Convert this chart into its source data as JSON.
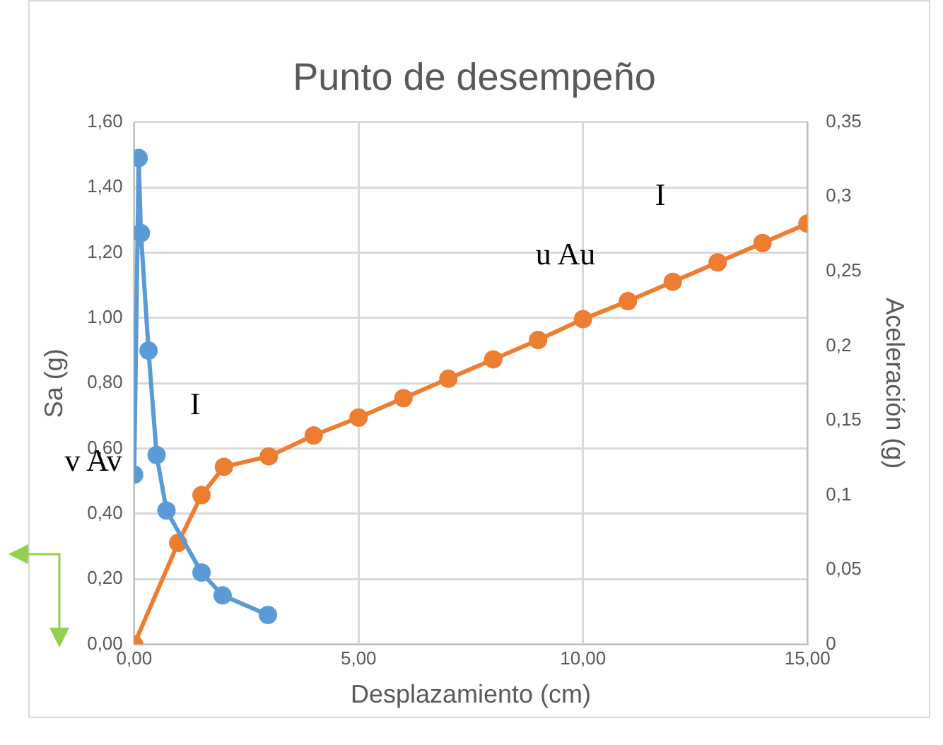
{
  "chart_data": {
    "type": "line",
    "title": "Punto de desempeño",
    "xlabel": "Desplazamiento (cm)",
    "ylabel": "Sa (g)",
    "y2label": "Aceleración (g)",
    "series": [
      {
        "color": "#5b9bd5",
        "x": [
          0,
          0.1,
          0.15,
          0.32,
          0.5,
          0.72,
          1.5,
          1.97,
          2.98
        ],
        "values": [
          0.52,
          1.49,
          1.26,
          0.9,
          0.58,
          0.41,
          0.22,
          0.15,
          0.09
        ]
      },
      {
        "color": "#ed7d31",
        "axis": "y2",
        "x": [
          0,
          0.98,
          1.5,
          2,
          3,
          4,
          5,
          6,
          7,
          8,
          9,
          10,
          11,
          12,
          13,
          14,
          15
        ],
        "values": [
          0,
          0.068,
          0.1,
          0.119,
          0.126,
          0.14,
          0.152,
          0.165,
          0.178,
          0.191,
          0.204,
          0.218,
          0.23,
          0.243,
          0.256,
          0.269,
          0.282
        ]
      }
    ],
    "xlim": [
      0,
      15
    ],
    "xticks": [
      {
        "value": 0,
        "label": "0,00"
      },
      {
        "value": 5,
        "label": "5,00"
      },
      {
        "value": 10,
        "label": "10,00"
      },
      {
        "value": 15,
        "label": "15,00"
      }
    ],
    "ylim": [
      0,
      1.6
    ],
    "yticks": [
      {
        "value": 0,
        "label": "0,00"
      },
      {
        "value": 0.2,
        "label": "0,20"
      },
      {
        "value": 0.4,
        "label": "0,40"
      },
      {
        "value": 0.6,
        "label": "0,60"
      },
      {
        "value": 0.8,
        "label": "0,80"
      },
      {
        "value": 1,
        "label": "1,00"
      },
      {
        "value": 1.2,
        "label": "1,20"
      },
      {
        "value": 1.4,
        "label": "1,40"
      },
      {
        "value": 1.6,
        "label": "1,60"
      }
    ],
    "y2lim": [
      0,
      0.35
    ],
    "y2ticks": [
      0,
      {
        "value": 0.05,
        "label": "0,05"
      },
      {
        "value": 0.1,
        "label": "0,1"
      },
      {
        "value": 0.15,
        "label": "0,15"
      },
      {
        "value": 0.2,
        "label": "0,2"
      },
      {
        "value": 0.25,
        "label": "0,25"
      },
      {
        "value": 0.3,
        "label": "0,3"
      },
      {
        "value": 0.35,
        "label": "0,35"
      }
    ],
    "annotations": [
      "v Av",
      "I",
      "u Au",
      "I"
    ],
    "grid": true,
    "legend": false,
    "marker": "circle",
    "line_style": "solid"
  }
}
